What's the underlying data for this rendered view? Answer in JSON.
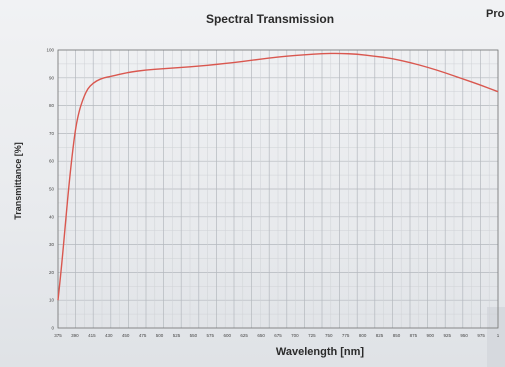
{
  "chart_data": {
    "type": "line",
    "title": "Spectral Transmission",
    "title_partial": "Pro",
    "xlabel": "Wavelength [nm]",
    "ylabel": "Transmittance [%]",
    "xlim": [
      375,
      1000
    ],
    "ylim": [
      0,
      100
    ],
    "x_ticks": [
      "375",
      "390",
      "415",
      "430",
      "450",
      "475",
      "500",
      "525",
      "550",
      "575",
      "600",
      "625",
      "650",
      "675",
      "700",
      "725",
      "750",
      "775",
      "800",
      "825",
      "850",
      "875",
      "900",
      "925",
      "950",
      "975",
      "1"
    ],
    "y_ticks": [
      "0",
      "10",
      "20",
      "30",
      "40",
      "50",
      "60",
      "70",
      "80",
      "90",
      "100"
    ],
    "grid": true,
    "series": [
      {
        "color": "#d9574f",
        "points": [
          [
            375,
            10
          ],
          [
            380,
            22
          ],
          [
            385,
            36
          ],
          [
            390,
            50
          ],
          [
            395,
            62
          ],
          [
            400,
            72
          ],
          [
            405,
            78
          ],
          [
            410,
            82
          ],
          [
            415,
            85
          ],
          [
            420,
            87
          ],
          [
            430,
            89
          ],
          [
            440,
            90
          ],
          [
            450,
            90.5
          ],
          [
            475,
            92
          ],
          [
            500,
            92.8
          ],
          [
            525,
            93.3
          ],
          [
            550,
            93.7
          ],
          [
            575,
            94.2
          ],
          [
            600,
            94.8
          ],
          [
            625,
            95.5
          ],
          [
            650,
            96.3
          ],
          [
            675,
            97.1
          ],
          [
            700,
            97.8
          ],
          [
            725,
            98.3
          ],
          [
            750,
            98.7
          ],
          [
            775,
            98.8
          ],
          [
            800,
            98.5
          ],
          [
            825,
            97.8
          ],
          [
            850,
            96.9
          ],
          [
            875,
            95.5
          ],
          [
            900,
            93.8
          ],
          [
            925,
            91.8
          ],
          [
            950,
            89.6
          ],
          [
            975,
            87.4
          ],
          [
            1000,
            85
          ]
        ]
      }
    ]
  }
}
